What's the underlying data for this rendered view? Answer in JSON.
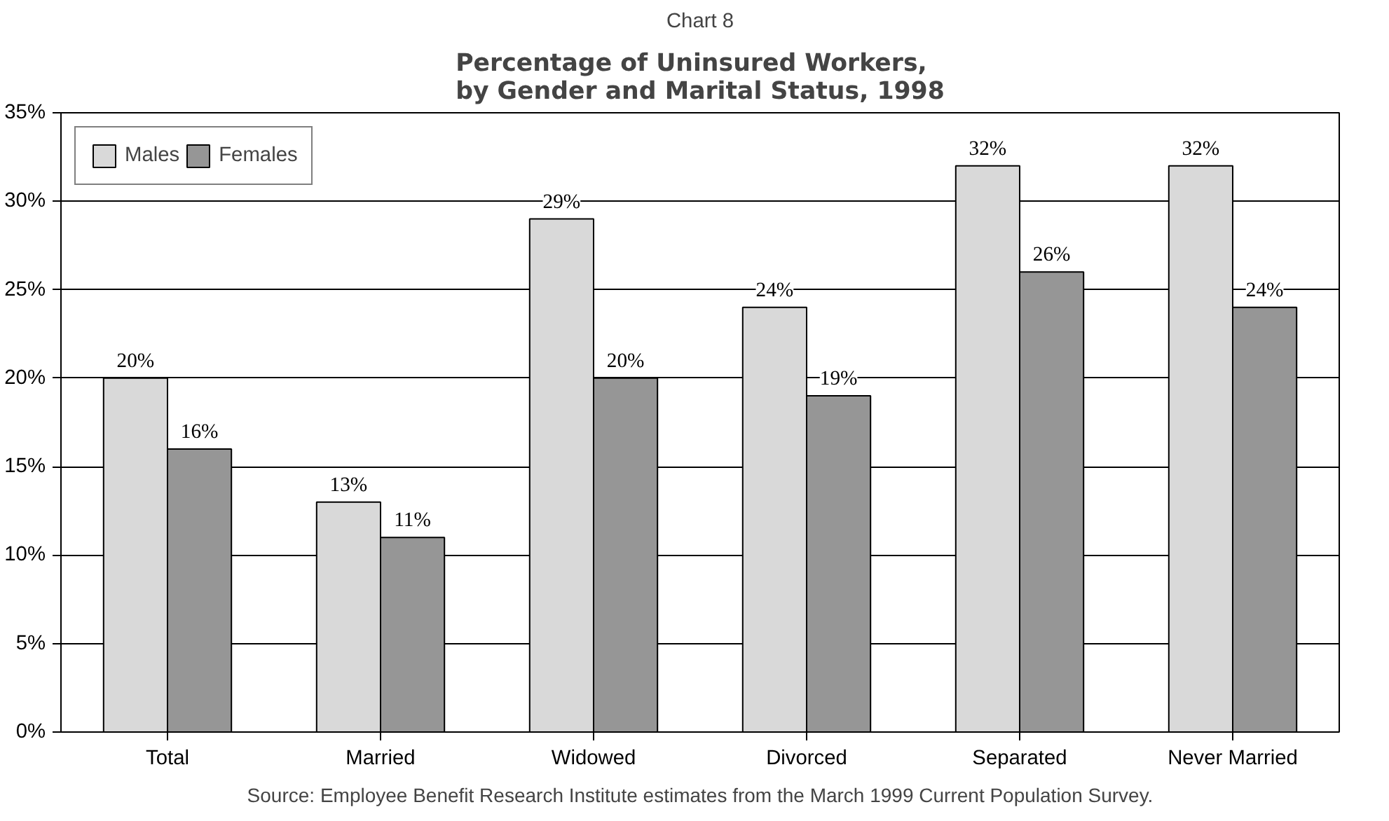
{
  "chart_data": {
    "type": "bar",
    "title": "Chart 8",
    "subtitle": "Percentage of Uninsured Workers,\nby Gender and Marital Status, 1998",
    "categories": [
      "Total",
      "Married",
      "Widowed",
      "Divorced",
      "Separated",
      "Never Married"
    ],
    "series": [
      {
        "name": "Males",
        "color": "#d9d9d9",
        "values": [
          20,
          13,
          29,
          24,
          32,
          32
        ],
        "value_labels": [
          "20%",
          "13%",
          "29%",
          "24%",
          "32%",
          "32%"
        ]
      },
      {
        "name": "Females",
        "color": "#969696",
        "values": [
          16,
          11,
          20,
          19,
          26,
          24
        ],
        "value_labels": [
          "16%",
          "11%",
          "20%",
          "19%",
          "26%",
          "24%"
        ]
      }
    ],
    "ylim": [
      0,
      35
    ],
    "yticks": [
      {
        "value": 0,
        "label": "0%"
      },
      {
        "value": 5,
        "label": "5%"
      },
      {
        "value": 10,
        "label": "10%"
      },
      {
        "value": 15,
        "label": "15%"
      },
      {
        "value": 20,
        "label": "20%"
      },
      {
        "value": 25,
        "label": "25%"
      },
      {
        "value": 30,
        "label": "30%"
      },
      {
        "value": 35,
        "label": "35%"
      }
    ],
    "grid": "y",
    "legend": "top left",
    "annotations": [
      "Source: Employee Benefit Research Institute estimates from the March 1999 Current Population Survey."
    ]
  }
}
